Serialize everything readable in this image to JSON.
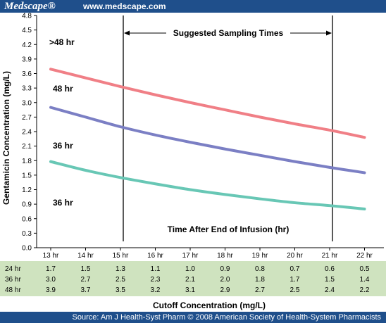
{
  "header": {
    "brand": "Medscape®",
    "site": "www.medscape.com"
  },
  "footer": {
    "source": "Source: Am J Health-Syst Pharm © 2008 American Society of Health-System Pharmacists"
  },
  "colors": {
    "header_bg": "#1f4f8b",
    "table_bg": "#cfe3bf",
    "curve_48hr": "#f07f86",
    "curve_36hr_upper": "#7b7fc4",
    "curve_36hr_lower": "#68c7b5"
  },
  "chart_data": {
    "type": "line",
    "x_categories": [
      "13 hr",
      "14 hr",
      "15 hr",
      "16 hr",
      "17 hr",
      "18 hr",
      "19 hr",
      "20 hr",
      "21 hr",
      "22 hr"
    ],
    "y_ticks": [
      "0.0",
      "0.3",
      "0.6",
      "0.9",
      "1.2",
      "1.5",
      "1.8",
      "2.1",
      "2.4",
      "2.7",
      "3.0",
      "3.3",
      "3.6",
      "3.9",
      "4.2",
      "4.5",
      "4.8"
    ],
    "ylim": [
      0,
      4.8
    ],
    "ylabel": "Gentamicin Concentration (mg/L)",
    "xlabel": "Cutoff Concentration (mg/L)",
    "series": [
      {
        "name": "48 hr",
        "values": [
          3.69,
          3.51,
          3.33,
          3.16,
          3.0,
          2.85,
          2.7,
          2.56,
          2.43,
          2.28
        ]
      },
      {
        "name": "36 hr",
        "values": [
          2.9,
          2.7,
          2.5,
          2.33,
          2.18,
          2.04,
          1.91,
          1.78,
          1.66,
          1.55
        ]
      },
      {
        "name": "36 hr",
        "values": [
          1.78,
          1.6,
          1.45,
          1.32,
          1.2,
          1.1,
          1.01,
          0.93,
          0.87,
          0.8
        ]
      }
    ],
    "region_labels": [
      ">48 hr"
    ],
    "sampling_lines_x": [
      "15 hr",
      "21 hr"
    ],
    "annotations": {
      "sampling": "Suggested Sampling Times",
      "infusion": "Time After End of Infusion (hr)"
    },
    "table": {
      "rows": [
        {
          "label": "24 hr",
          "values": [
            "1.7",
            "1.5",
            "1.3",
            "1.1",
            "1.0",
            "0.9",
            "0.8",
            "0.7",
            "0.6",
            "0.5"
          ]
        },
        {
          "label": "36 hr",
          "values": [
            "3.0",
            "2.7",
            "2.5",
            "2.3",
            "2.1",
            "2.0",
            "1.8",
            "1.7",
            "1.5",
            "1.4"
          ]
        },
        {
          "label": "48 hr",
          "values": [
            "3.9",
            "3.7",
            "3.5",
            "3.2",
            "3.1",
            "2.9",
            "2.7",
            "2.5",
            "2.4",
            "2.2"
          ]
        }
      ]
    }
  }
}
